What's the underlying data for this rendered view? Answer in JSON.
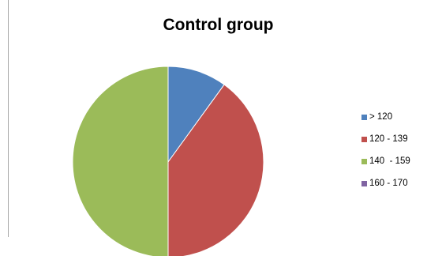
{
  "chart_data": {
    "type": "pie",
    "title": "Control group",
    "categories": [
      "> 120",
      "120 - 139",
      "140  - 159",
      "160 - 170"
    ],
    "values": [
      10,
      40,
      50,
      0
    ],
    "colors": [
      "#4f81bd",
      "#c0504d",
      "#9bbb59",
      "#8064a2"
    ],
    "legend_position": "right"
  }
}
